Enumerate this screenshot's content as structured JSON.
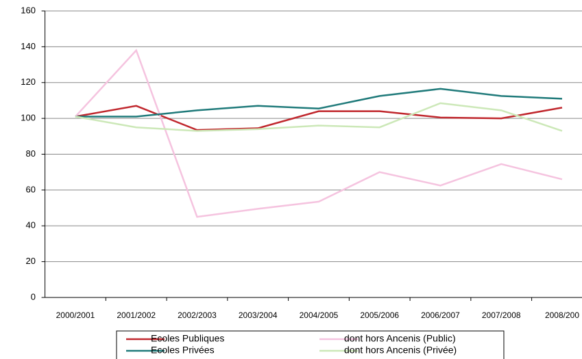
{
  "chart_data": {
    "type": "line",
    "categories": [
      "2000/2001",
      "2001/2002",
      "2002/2003",
      "2003/2004",
      "2004/2005",
      "2005/2006",
      "2006/2007",
      "2007/2008",
      "2008/200"
    ],
    "series": [
      {
        "name": "Ecoles Publiques",
        "color": "#c0272d",
        "values": [
          101,
          107,
          93.5,
          94.5,
          104,
          104,
          100.5,
          100,
          106
        ]
      },
      {
        "name": "dont hors Ancenis (Public)",
        "color": "#f5c3df",
        "values": [
          101,
          138,
          45,
          49.5,
          53.5,
          70,
          62.5,
          74.5,
          66
        ]
      },
      {
        "name": "Ecoles Privées",
        "color": "#1f7a7a",
        "values": [
          101,
          101,
          104.5,
          107,
          105.5,
          112.5,
          116.5,
          112.5,
          111
        ]
      },
      {
        "name": "dont hors Ancenis (Privée)",
        "color": "#cce8b8",
        "values": [
          101,
          95,
          93,
          94,
          96,
          95,
          108.5,
          104.5,
          93
        ]
      }
    ],
    "ylim": [
      0,
      160
    ],
    "yticks": [
      0,
      20,
      40,
      60,
      80,
      100,
      120,
      140,
      160
    ],
    "grid": true,
    "legend": "bottom"
  }
}
